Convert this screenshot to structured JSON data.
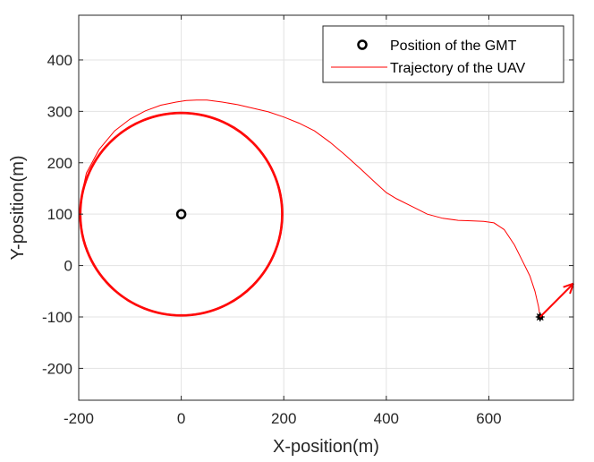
{
  "chart_data": {
    "type": "line",
    "xlabel": "X-position(m)",
    "ylabel": "Y-position(m)",
    "xlim": [
      -200,
      765
    ],
    "ylim": [
      -262,
      487
    ],
    "xticks": [
      -200,
      0,
      200,
      400,
      600
    ],
    "yticks": [
      -200,
      -100,
      0,
      100,
      200,
      300,
      400
    ],
    "grid": true,
    "legend_position": "top-right",
    "legend": [
      "Position of the GMT",
      "Trajectory of the UAV"
    ],
    "gmt_position": {
      "x": 0,
      "y": 100
    },
    "uav_start": {
      "x": 700,
      "y": -100
    },
    "uav_heading_arrow": {
      "from": [
        700,
        -100
      ],
      "to": [
        765,
        -35
      ]
    },
    "circle": {
      "center": [
        0,
        100
      ],
      "radius": 197
    },
    "trajectory_approach": {
      "x": [
        700,
        697,
        690,
        680,
        665,
        650,
        630,
        610,
        590,
        565,
        540,
        510,
        480,
        450,
        420,
        400,
        380,
        350,
        320,
        290,
        260,
        230,
        200,
        170,
        140,
        110,
        80,
        50,
        30,
        10,
        -10,
        -40,
        -70,
        -100,
        -130,
        -160,
        -185,
        -195,
        -197
      ],
      "y": [
        -100,
        -80,
        -50,
        -20,
        10,
        40,
        70,
        83,
        86,
        87,
        88,
        92,
        100,
        115,
        130,
        142,
        160,
        188,
        215,
        240,
        262,
        277,
        289,
        299,
        306,
        313,
        318,
        322,
        322,
        321,
        318,
        312,
        301,
        285,
        262,
        226,
        180,
        135,
        100
      ]
    },
    "loops": 3
  }
}
